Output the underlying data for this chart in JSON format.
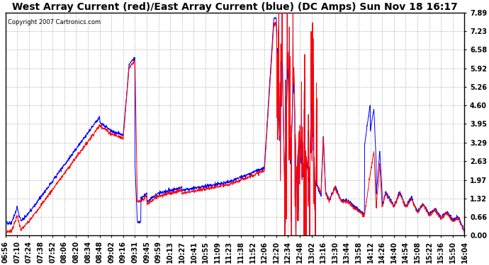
{
  "title": "West Array Current (red)/East Array Current (blue) (DC Amps) Sun Nov 18 16:17",
  "copyright": "Copyright 2007 Cartronics.com",
  "yticks": [
    0.0,
    0.66,
    1.32,
    1.97,
    2.63,
    3.29,
    3.95,
    4.6,
    5.26,
    5.92,
    6.58,
    7.23,
    7.89
  ],
  "ylim": [
    0.0,
    7.89
  ],
  "xtick_labels": [
    "06:56",
    "07:10",
    "07:24",
    "07:38",
    "07:52",
    "08:06",
    "08:20",
    "08:34",
    "08:48",
    "09:02",
    "09:16",
    "09:31",
    "09:45",
    "09:59",
    "10:13",
    "10:27",
    "10:41",
    "10:55",
    "11:09",
    "11:23",
    "11:38",
    "11:52",
    "12:06",
    "12:20",
    "12:34",
    "12:48",
    "13:02",
    "13:16",
    "13:30",
    "13:44",
    "13:58",
    "14:12",
    "14:26",
    "14:40",
    "14:54",
    "15:08",
    "15:22",
    "15:36",
    "15:50",
    "16:04"
  ],
  "background_color": "#ffffff",
  "plot_bg_color": "#ffffff",
  "grid_color": "#aaaaaa",
  "title_fontsize": 10,
  "tick_fontsize": 7,
  "red_color": "#ff0000",
  "blue_color": "#0000ff"
}
